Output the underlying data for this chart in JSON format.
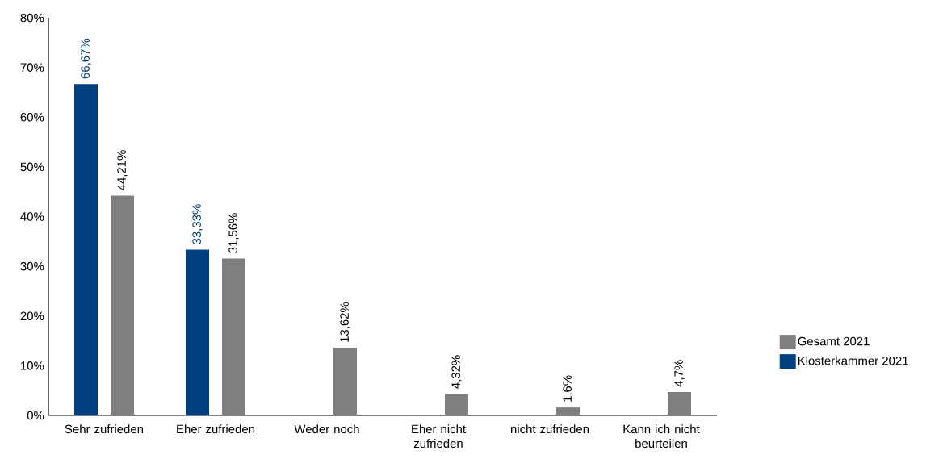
{
  "chart_data": {
    "type": "bar",
    "categories": [
      "Sehr zufrieden",
      "Eher zufrieden",
      "Weder noch",
      "Eher nicht zufrieden",
      "nicht zufrieden",
      "Kann ich nicht beurteilen"
    ],
    "series": [
      {
        "name": "Klosterkammer 2021",
        "color": "#003f7d",
        "values": [
          66.67,
          33.33,
          null,
          null,
          null,
          null
        ],
        "value_labels": [
          "66,67%",
          "33,33%",
          null,
          null,
          null,
          null
        ]
      },
      {
        "name": "Gesamt 2021",
        "color": "#7f7f7f",
        "values": [
          44.21,
          31.56,
          13.62,
          4.32,
          1.6,
          4.7
        ],
        "value_labels": [
          "44,21%",
          "31,56%",
          "13,62%",
          "4,32%",
          "1,6%",
          "4,7%"
        ]
      }
    ],
    "ylim": [
      0,
      80
    ],
    "yticks": [
      {
        "value": 0,
        "label": "0%"
      },
      {
        "value": 10,
        "label": "10%"
      },
      {
        "value": 20,
        "label": "20%"
      },
      {
        "value": 30,
        "label": "30%"
      },
      {
        "value": 40,
        "label": "40%"
      },
      {
        "value": 50,
        "label": "50%"
      },
      {
        "value": 60,
        "label": "60%"
      },
      {
        "value": 70,
        "label": "70%"
      },
      {
        "value": 80,
        "label": "80%"
      }
    ],
    "legend": "right",
    "grid": false
  }
}
